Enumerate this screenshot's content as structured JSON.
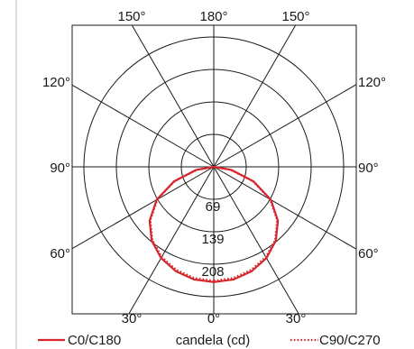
{
  "chart_data": {
    "type": "polar",
    "unit_label": "candela (cd)",
    "radial_ticks": [
      69,
      139,
      208
    ],
    "angle_labels": {
      "top": [
        "150°",
        "180°",
        "150°"
      ],
      "left": [
        "120°",
        "90°",
        "60°"
      ],
      "right": [
        "120°",
        "90°",
        "60°"
      ],
      "bottom": [
        "30°",
        "0°",
        "30°"
      ]
    },
    "series": [
      {
        "name": "C0/C180",
        "style": "solid",
        "color": "#d6272e",
        "gamma_deg": [
          0,
          10,
          20,
          30,
          40,
          50,
          60,
          70,
          80,
          90
        ],
        "values": [
          245,
          243,
          236,
          224,
          205,
          178,
          140,
          90,
          38,
          0
        ]
      },
      {
        "name": "C90/C270",
        "style": "dotted",
        "color": "#d6272e",
        "gamma_deg": [
          0,
          10,
          20,
          30,
          40,
          50,
          60,
          70,
          80,
          90
        ],
        "values": [
          242,
          240,
          233,
          221,
          203,
          176,
          138,
          88,
          36,
          0
        ]
      }
    ]
  }
}
